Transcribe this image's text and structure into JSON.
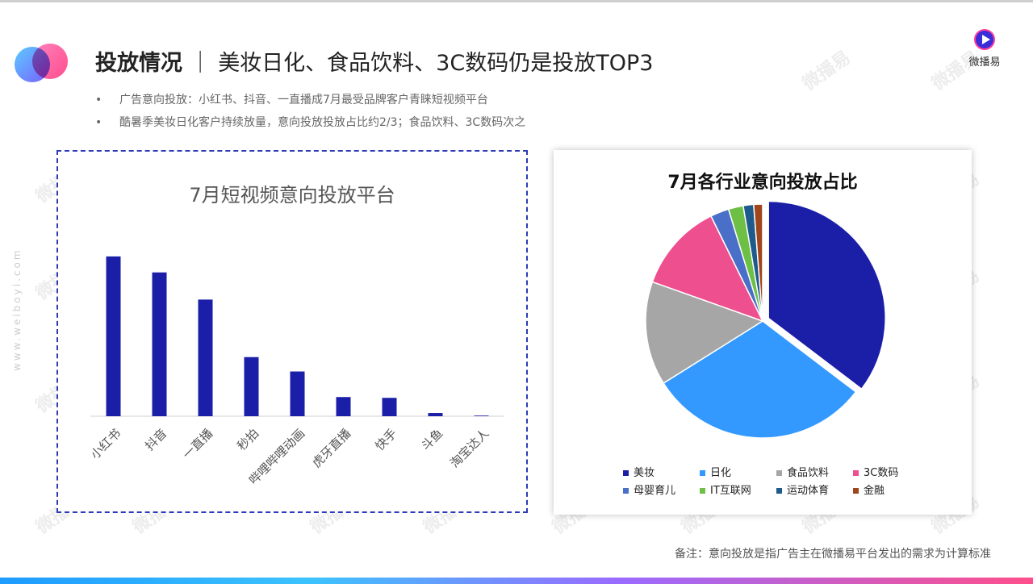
{
  "header": {
    "title_bold": "投放情况",
    "title_sep": "｜",
    "title_rest": "美妆日化、食品饮料、3C数码仍是投放TOP3",
    "bullets": [
      "广告意向投放：小红书、抖音、一直播成7月最受品牌客户青睐短视频平台",
      "酷暑季美妆日化客户持续放量，意向投放投放占比约2/3；食品饮料、3C数码次之"
    ],
    "bullet_symbol": "•"
  },
  "brand": {
    "name": "微播易"
  },
  "watermark": {
    "text": "微播易",
    "side_url": "www.weiboyi.com"
  },
  "chart_data": [
    {
      "type": "bar",
      "title": "7月短视频意向投放平台",
      "categories": [
        "小红书",
        "抖音",
        "一直播",
        "秒拍",
        "哔哩哔哩动画",
        "虎牙直播",
        "快手",
        "斗鱼",
        "淘宝达人"
      ],
      "values": [
        100,
        90,
        73,
        37,
        28,
        12,
        11.5,
        2,
        0.3
      ],
      "ylim": [
        0,
        105
      ],
      "color": "#1b1fa8"
    },
    {
      "type": "pie",
      "title": "7月各行业意向投放占比",
      "labels": [
        "美妆",
        "日化",
        "食品饮料",
        "3C数码",
        "母婴育儿",
        "IT互联网",
        "运动体育",
        "金融"
      ],
      "values": [
        34.5,
        30,
        14,
        12,
        2.5,
        2,
        1.4,
        1.2
      ],
      "colors": [
        "#1b1fa8",
        "#3399ff",
        "#a6a6a6",
        "#ee4f8f",
        "#4a6fc8",
        "#6dbf45",
        "#1f5a8c",
        "#a0461c"
      ],
      "legend": "bottom",
      "exploded": "美妆"
    }
  ],
  "footer": {
    "note": "备注：意向投放是指广告主在微播易平台发出的需求为计算标准"
  }
}
